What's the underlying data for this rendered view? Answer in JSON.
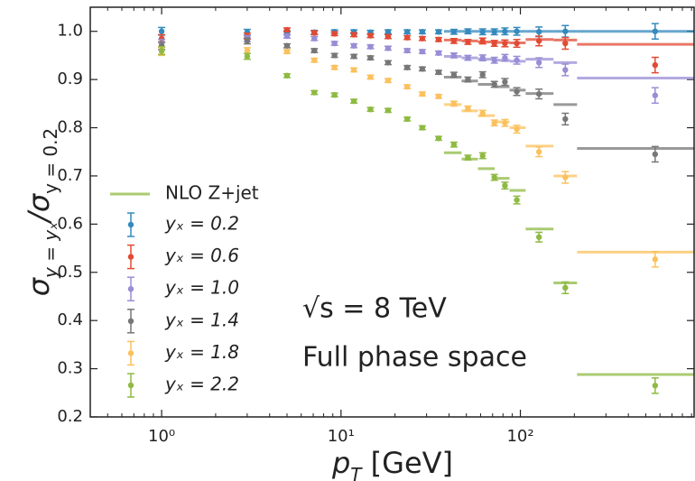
{
  "chart_data": {
    "type": "errorbar",
    "y_label": [
      "σ",
      "y = yₓ",
      "/σ",
      "y = 0.2"
    ],
    "x_label": [
      "p",
      "T",
      " [GeV]"
    ],
    "annotations": [
      "√s = 8 TeV",
      "Full phase space"
    ],
    "log_x": true,
    "xlim": [
      0.4,
      930
    ],
    "ylim": [
      0.2,
      1.05
    ],
    "xticks": [
      {
        "value": 1,
        "label": "10⁰"
      },
      {
        "value": 10,
        "label": "10¹"
      },
      {
        "value": 100,
        "label": "10²"
      }
    ],
    "yticks": [
      0.2,
      0.3,
      0.4,
      0.5,
      0.6,
      0.7,
      0.8,
      0.9,
      {
        "value": 1,
        "label": "1.0"
      }
    ],
    "x": [
      1,
      3,
      5,
      7.1,
      9.2,
      11.8,
      14.6,
      18.3,
      23.4,
      28.4,
      35,
      42.6,
      51,
      61.6,
      71.6,
      82,
      95.5,
      127,
      178,
      564
    ],
    "series": [
      {
        "name": "yₓ = 0.2",
        "color": "#348abd",
        "values": [
          1.0,
          0.998,
          0.997,
          0.998,
          0.999,
          0.999,
          0.998,
          0.999,
          0.999,
          0.999,
          0.999,
          0.999,
          1.0,
          0.999,
          0.999,
          1.0,
          1.0,
          0.999,
          1.0,
          1.0
        ],
        "errors": [
          0.008,
          0.006,
          0.004,
          0.004,
          0.004,
          0.004,
          0.004,
          0.004,
          0.004,
          0.004,
          0.004,
          0.005,
          0.005,
          0.006,
          0.006,
          0.007,
          0.008,
          0.01,
          0.012,
          0.016
        ]
      },
      {
        "name": "yₓ = 0.6",
        "color": "#e24a33",
        "values": [
          0.985,
          0.99,
          1.003,
          0.997,
          0.995,
          0.993,
          0.991,
          0.989,
          0.987,
          0.985,
          0.983,
          0.98,
          0.978,
          0.98,
          0.975,
          0.975,
          0.975,
          0.98,
          0.975,
          0.93
        ],
        "errors": [
          0.008,
          0.006,
          0.004,
          0.004,
          0.004,
          0.004,
          0.004,
          0.004,
          0.004,
          0.004,
          0.004,
          0.005,
          0.005,
          0.006,
          0.006,
          0.007,
          0.008,
          0.01,
          0.012,
          0.016
        ]
      },
      {
        "name": "yₓ = 1.0",
        "color": "#988ed5",
        "values": [
          0.975,
          0.985,
          0.99,
          0.985,
          0.975,
          0.97,
          0.968,
          0.965,
          0.96,
          0.958,
          0.955,
          0.95,
          0.945,
          0.945,
          0.94,
          0.945,
          0.94,
          0.935,
          0.92,
          0.867
        ],
        "errors": [
          0.008,
          0.006,
          0.004,
          0.004,
          0.004,
          0.004,
          0.004,
          0.004,
          0.004,
          0.004,
          0.004,
          0.005,
          0.005,
          0.006,
          0.006,
          0.007,
          0.008,
          0.01,
          0.012,
          0.016
        ]
      },
      {
        "name": "yₓ = 1.4",
        "color": "#777777",
        "values": [
          0.97,
          0.98,
          0.97,
          0.96,
          0.95,
          0.948,
          0.945,
          0.935,
          0.925,
          0.922,
          0.915,
          0.91,
          0.9,
          0.91,
          0.89,
          0.895,
          0.875,
          0.87,
          0.818,
          0.745
        ],
        "errors": [
          0.008,
          0.006,
          0.004,
          0.004,
          0.004,
          0.004,
          0.004,
          0.004,
          0.004,
          0.004,
          0.004,
          0.005,
          0.005,
          0.006,
          0.006,
          0.007,
          0.008,
          0.01,
          0.012,
          0.016
        ]
      },
      {
        "name": "yₓ = 1.8",
        "color": "#fbc15e",
        "values": [
          0.958,
          0.96,
          0.958,
          0.94,
          0.925,
          0.92,
          0.905,
          0.898,
          0.885,
          0.87,
          0.865,
          0.85,
          0.84,
          0.83,
          0.81,
          0.81,
          0.797,
          0.75,
          0.697,
          0.527
        ],
        "errors": [
          0.008,
          0.006,
          0.004,
          0.004,
          0.004,
          0.004,
          0.004,
          0.004,
          0.004,
          0.004,
          0.004,
          0.005,
          0.005,
          0.006,
          0.006,
          0.007,
          0.008,
          0.01,
          0.012,
          0.016
        ]
      },
      {
        "name": "yₓ = 2.2",
        "color": "#8eba42",
        "values": [
          0.96,
          0.948,
          0.908,
          0.873,
          0.868,
          0.855,
          0.838,
          0.836,
          0.818,
          0.8,
          0.778,
          0.765,
          0.738,
          0.742,
          0.697,
          0.68,
          0.65,
          0.573,
          0.468,
          0.265
        ],
        "errors": [
          0.008,
          0.006,
          0.004,
          0.004,
          0.004,
          0.004,
          0.004,
          0.004,
          0.004,
          0.004,
          0.004,
          0.005,
          0.005,
          0.006,
          0.006,
          0.007,
          0.008,
          0.01,
          0.012,
          0.016
        ]
      }
    ],
    "prediction": {
      "name": "NLO Z+jet",
      "bin_edges": [
        37.5,
        47,
        58,
        72,
        87,
        107,
        153,
        207,
        930
      ],
      "series": [
        {
          "color": "#348abd",
          "values": [
            1,
            1,
            1,
            1,
            1,
            1,
            1,
            1
          ]
        },
        {
          "color": "#e24a33",
          "values": [
            0.982,
            0.98,
            0.978,
            0.977,
            0.976,
            0.983,
            0.982,
            0.973
          ]
        },
        {
          "color": "#988ed5",
          "values": [
            0.948,
            0.945,
            0.942,
            0.94,
            0.938,
            0.942,
            0.935,
            0.903
          ]
        },
        {
          "color": "#777777",
          "values": [
            0.905,
            0.897,
            0.89,
            0.885,
            0.878,
            0.871,
            0.848,
            0.757
          ]
        },
        {
          "color": "#fbc15e",
          "values": [
            0.848,
            0.835,
            0.825,
            0.812,
            0.8,
            0.762,
            0.7,
            0.542
          ]
        },
        {
          "color": "#8eba42",
          "values": [
            0.748,
            0.735,
            0.715,
            0.695,
            0.67,
            0.59,
            0.478,
            0.288
          ]
        }
      ]
    }
  }
}
